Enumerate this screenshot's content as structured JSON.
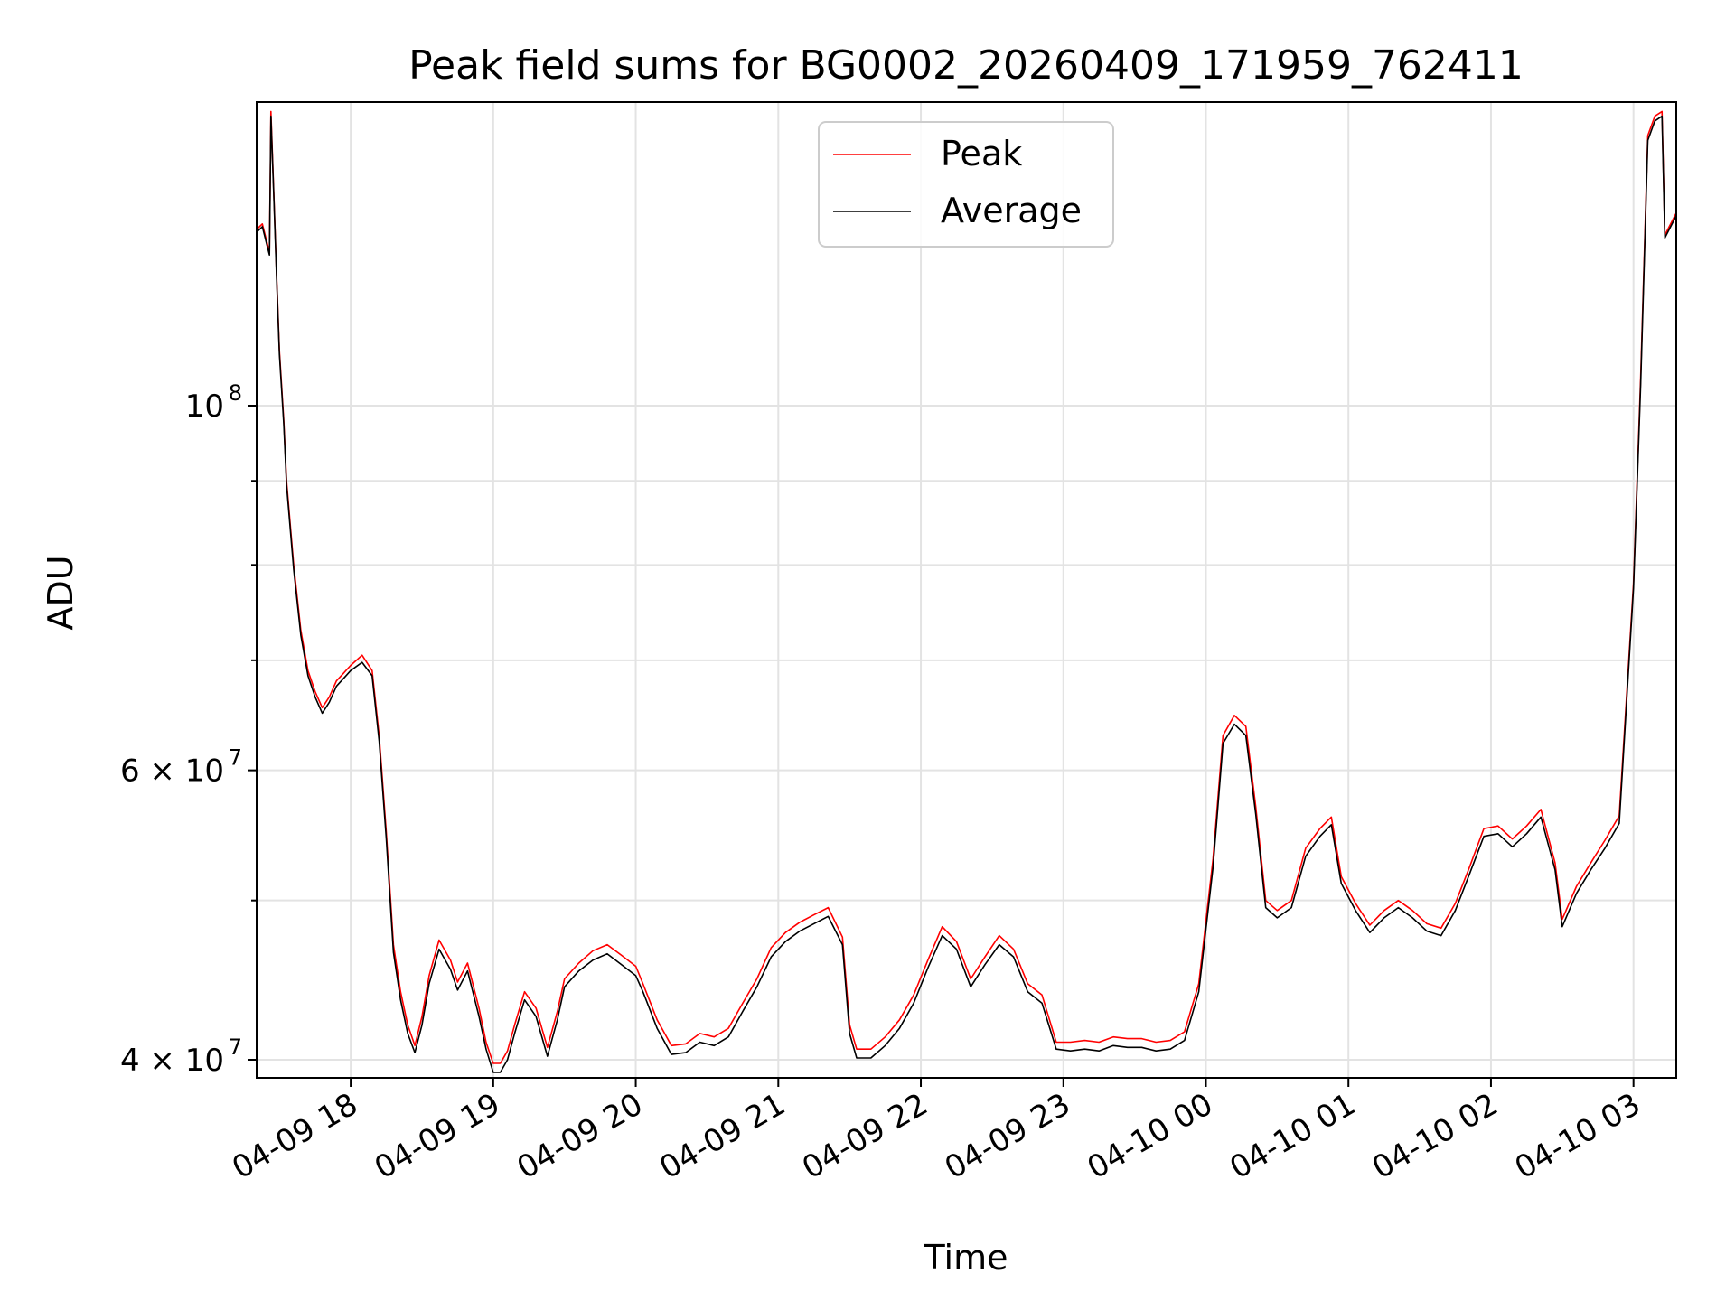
{
  "chart_data": {
    "type": "line",
    "title": "Peak field sums for BG0002_20260409_171959_762411",
    "xlabel": "Time",
    "ylabel": "ADU",
    "yscale": "log",
    "ylim": [
      39000000,
      153000000
    ],
    "xlim": [
      -0.66,
      9.3
    ],
    "grid": true,
    "legend_position": "top-center",
    "x_ticks": [
      {
        "label": "04-09 18",
        "value": 0
      },
      {
        "label": "04-09 19",
        "value": 1
      },
      {
        "label": "04-09 20",
        "value": 2
      },
      {
        "label": "04-09 21",
        "value": 3
      },
      {
        "label": "04-09 22",
        "value": 4
      },
      {
        "label": "04-09 23",
        "value": 5
      },
      {
        "label": "04-10 00",
        "value": 6
      },
      {
        "label": "04-10 01",
        "value": 7
      },
      {
        "label": "04-10 02",
        "value": 8
      },
      {
        "label": "04-10 03",
        "value": 9
      }
    ],
    "y_ticks": [
      {
        "base": "10",
        "exp": "8",
        "coef": "",
        "value": 100000000
      },
      {
        "base": "10",
        "exp": "7",
        "coef": "6 × ",
        "value": 60000000
      },
      {
        "base": "10",
        "exp": "7",
        "coef": "4 × ",
        "value": 40000000
      }
    ],
    "y_minor_ticks": [
      50000000,
      70000000,
      80000000,
      90000000
    ],
    "series": [
      {
        "name": "Peak",
        "color": "#ff0000",
        "points": [
          [
            -0.66,
            128000000
          ],
          [
            -0.62,
            129000000
          ],
          [
            -0.59,
            126000000
          ],
          [
            -0.57,
            124000000
          ],
          [
            -0.56,
            151000000
          ],
          [
            -0.54,
            135000000
          ],
          [
            -0.52,
            120000000
          ],
          [
            -0.5,
            108000000
          ],
          [
            -0.47,
            98000000
          ],
          [
            -0.45,
            90000000
          ],
          [
            -0.4,
            80000000
          ],
          [
            -0.35,
            73000000
          ],
          [
            -0.3,
            69000000
          ],
          [
            -0.25,
            67000000
          ],
          [
            -0.2,
            65500000
          ],
          [
            -0.15,
            66500000
          ],
          [
            -0.1,
            68000000
          ],
          [
            0,
            69500000
          ],
          [
            0.08,
            70500000
          ],
          [
            0.15,
            69000000
          ],
          [
            0.2,
            63000000
          ],
          [
            0.25,
            55000000
          ],
          [
            0.3,
            47000000
          ],
          [
            0.35,
            44000000
          ],
          [
            0.4,
            42000000
          ],
          [
            0.45,
            40800000
          ],
          [
            0.5,
            42500000
          ],
          [
            0.55,
            45000000
          ],
          [
            0.62,
            47300000
          ],
          [
            0.7,
            46000000
          ],
          [
            0.75,
            44600000
          ],
          [
            0.82,
            45800000
          ],
          [
            0.9,
            43000000
          ],
          [
            0.95,
            41000000
          ],
          [
            1.0,
            39800000
          ],
          [
            1.05,
            39800000
          ],
          [
            1.1,
            40500000
          ],
          [
            1.15,
            42000000
          ],
          [
            1.22,
            44000000
          ],
          [
            1.3,
            43000000
          ],
          [
            1.38,
            40700000
          ],
          [
            1.45,
            42800000
          ],
          [
            1.5,
            44800000
          ],
          [
            1.6,
            45800000
          ],
          [
            1.7,
            46600000
          ],
          [
            1.8,
            47000000
          ],
          [
            1.9,
            46300000
          ],
          [
            2.0,
            45600000
          ],
          [
            2.05,
            44500000
          ],
          [
            2.15,
            42300000
          ],
          [
            2.25,
            40800000
          ],
          [
            2.35,
            40900000
          ],
          [
            2.45,
            41500000
          ],
          [
            2.55,
            41300000
          ],
          [
            2.65,
            41800000
          ],
          [
            2.75,
            43300000
          ],
          [
            2.85,
            44800000
          ],
          [
            2.95,
            46800000
          ],
          [
            3.05,
            47800000
          ],
          [
            3.15,
            48500000
          ],
          [
            3.25,
            49000000
          ],
          [
            3.35,
            49500000
          ],
          [
            3.45,
            47500000
          ],
          [
            3.5,
            42000000
          ],
          [
            3.55,
            40600000
          ],
          [
            3.65,
            40600000
          ],
          [
            3.75,
            41300000
          ],
          [
            3.85,
            42300000
          ],
          [
            3.95,
            43800000
          ],
          [
            4.05,
            46000000
          ],
          [
            4.15,
            48200000
          ],
          [
            4.25,
            47200000
          ],
          [
            4.35,
            44800000
          ],
          [
            4.45,
            46200000
          ],
          [
            4.55,
            47600000
          ],
          [
            4.65,
            46700000
          ],
          [
            4.75,
            44500000
          ],
          [
            4.85,
            43800000
          ],
          [
            4.95,
            41000000
          ],
          [
            5.05,
            41000000
          ],
          [
            5.15,
            41100000
          ],
          [
            5.25,
            41000000
          ],
          [
            5.35,
            41300000
          ],
          [
            5.45,
            41200000
          ],
          [
            5.55,
            41200000
          ],
          [
            5.65,
            41000000
          ],
          [
            5.75,
            41100000
          ],
          [
            5.85,
            41600000
          ],
          [
            5.95,
            44500000
          ],
          [
            6.05,
            53000000
          ],
          [
            6.12,
            63000000
          ],
          [
            6.2,
            64800000
          ],
          [
            6.28,
            63800000
          ],
          [
            6.35,
            57000000
          ],
          [
            6.42,
            50000000
          ],
          [
            6.5,
            49300000
          ],
          [
            6.6,
            50000000
          ],
          [
            6.7,
            53800000
          ],
          [
            6.8,
            55300000
          ],
          [
            6.88,
            56200000
          ],
          [
            6.95,
            51700000
          ],
          [
            7.05,
            49800000
          ],
          [
            7.15,
            48300000
          ],
          [
            7.25,
            49300000
          ],
          [
            7.35,
            50000000
          ],
          [
            7.45,
            49300000
          ],
          [
            7.55,
            48400000
          ],
          [
            7.65,
            48100000
          ],
          [
            7.75,
            49800000
          ],
          [
            7.85,
            52400000
          ],
          [
            7.95,
            55300000
          ],
          [
            8.05,
            55500000
          ],
          [
            8.15,
            54500000
          ],
          [
            8.25,
            55500000
          ],
          [
            8.35,
            56800000
          ],
          [
            8.45,
            52700000
          ],
          [
            8.5,
            48700000
          ],
          [
            8.6,
            51000000
          ],
          [
            8.7,
            52700000
          ],
          [
            8.8,
            54400000
          ],
          [
            8.9,
            56300000
          ],
          [
            9.0,
            78000000
          ],
          [
            9.05,
            104000000
          ],
          [
            9.1,
            146000000
          ],
          [
            9.15,
            150000000
          ],
          [
            9.2,
            151000000
          ],
          [
            9.22,
            127000000
          ],
          [
            9.3,
            131000000
          ]
        ]
      },
      {
        "name": "Average",
        "color": "#000000",
        "points": [
          [
            -0.66,
            127500000
          ],
          [
            -0.62,
            128500000
          ],
          [
            -0.59,
            125500000
          ],
          [
            -0.57,
            123500000
          ],
          [
            -0.56,
            150000000
          ],
          [
            -0.54,
            134500000
          ],
          [
            -0.52,
            119500000
          ],
          [
            -0.5,
            107500000
          ],
          [
            -0.47,
            97500000
          ],
          [
            -0.45,
            89500000
          ],
          [
            -0.4,
            79500000
          ],
          [
            -0.35,
            72500000
          ],
          [
            -0.3,
            68500000
          ],
          [
            -0.25,
            66500000
          ],
          [
            -0.2,
            65000000
          ],
          [
            -0.15,
            66000000
          ],
          [
            -0.1,
            67500000
          ],
          [
            0,
            69000000
          ],
          [
            0.08,
            69800000
          ],
          [
            0.15,
            68500000
          ],
          [
            0.2,
            62500000
          ],
          [
            0.25,
            54500000
          ],
          [
            0.3,
            46500000
          ],
          [
            0.35,
            43500000
          ],
          [
            0.4,
            41500000
          ],
          [
            0.45,
            40400000
          ],
          [
            0.5,
            42000000
          ],
          [
            0.55,
            44500000
          ],
          [
            0.62,
            46700000
          ],
          [
            0.7,
            45400000
          ],
          [
            0.75,
            44100000
          ],
          [
            0.82,
            45300000
          ],
          [
            0.9,
            42500000
          ],
          [
            0.95,
            40600000
          ],
          [
            1.0,
            39300000
          ],
          [
            1.05,
            39300000
          ],
          [
            1.1,
            40000000
          ],
          [
            1.15,
            41500000
          ],
          [
            1.22,
            43500000
          ],
          [
            1.3,
            42500000
          ],
          [
            1.38,
            40200000
          ],
          [
            1.45,
            42300000
          ],
          [
            1.5,
            44300000
          ],
          [
            1.6,
            45300000
          ],
          [
            1.7,
            46000000
          ],
          [
            1.8,
            46400000
          ],
          [
            1.9,
            45700000
          ],
          [
            2.0,
            45000000
          ],
          [
            2.05,
            44000000
          ],
          [
            2.15,
            41800000
          ],
          [
            2.25,
            40300000
          ],
          [
            2.35,
            40400000
          ],
          [
            2.45,
            41000000
          ],
          [
            2.55,
            40800000
          ],
          [
            2.65,
            41300000
          ],
          [
            2.75,
            42800000
          ],
          [
            2.85,
            44300000
          ],
          [
            2.95,
            46200000
          ],
          [
            3.05,
            47200000
          ],
          [
            3.15,
            47900000
          ],
          [
            3.25,
            48400000
          ],
          [
            3.35,
            48900000
          ],
          [
            3.45,
            47000000
          ],
          [
            3.5,
            41500000
          ],
          [
            3.55,
            40100000
          ],
          [
            3.65,
            40100000
          ],
          [
            3.75,
            40800000
          ],
          [
            3.85,
            41800000
          ],
          [
            3.95,
            43300000
          ],
          [
            4.05,
            45500000
          ],
          [
            4.15,
            47600000
          ],
          [
            4.25,
            46700000
          ],
          [
            4.35,
            44300000
          ],
          [
            4.45,
            45700000
          ],
          [
            4.55,
            47000000
          ],
          [
            4.65,
            46200000
          ],
          [
            4.75,
            44000000
          ],
          [
            4.85,
            43300000
          ],
          [
            4.95,
            40600000
          ],
          [
            5.05,
            40500000
          ],
          [
            5.15,
            40600000
          ],
          [
            5.25,
            40500000
          ],
          [
            5.35,
            40800000
          ],
          [
            5.45,
            40700000
          ],
          [
            5.55,
            40700000
          ],
          [
            5.65,
            40500000
          ],
          [
            5.75,
            40600000
          ],
          [
            5.85,
            41100000
          ],
          [
            5.95,
            44000000
          ],
          [
            6.05,
            52400000
          ],
          [
            6.12,
            62300000
          ],
          [
            6.2,
            64000000
          ],
          [
            6.28,
            63000000
          ],
          [
            6.35,
            56400000
          ],
          [
            6.42,
            49500000
          ],
          [
            6.5,
            48800000
          ],
          [
            6.6,
            49500000
          ],
          [
            6.7,
            53200000
          ],
          [
            6.8,
            54700000
          ],
          [
            6.88,
            55600000
          ],
          [
            6.95,
            51200000
          ],
          [
            7.05,
            49300000
          ],
          [
            7.15,
            47800000
          ],
          [
            7.25,
            48800000
          ],
          [
            7.35,
            49500000
          ],
          [
            7.45,
            48800000
          ],
          [
            7.55,
            47900000
          ],
          [
            7.65,
            47600000
          ],
          [
            7.75,
            49300000
          ],
          [
            7.85,
            51900000
          ],
          [
            7.95,
            54700000
          ],
          [
            8.05,
            54900000
          ],
          [
            8.15,
            53900000
          ],
          [
            8.25,
            54900000
          ],
          [
            8.35,
            56200000
          ],
          [
            8.45,
            52200000
          ],
          [
            8.5,
            48200000
          ],
          [
            8.6,
            50500000
          ],
          [
            8.7,
            52200000
          ],
          [
            8.8,
            53800000
          ],
          [
            8.9,
            55700000
          ],
          [
            9.0,
            77500000
          ],
          [
            9.05,
            103000000
          ],
          [
            9.1,
            145000000
          ],
          [
            9.15,
            149000000
          ],
          [
            9.2,
            150000000
          ],
          [
            9.22,
            126500000
          ],
          [
            9.3,
            130500000
          ]
        ]
      }
    ]
  }
}
